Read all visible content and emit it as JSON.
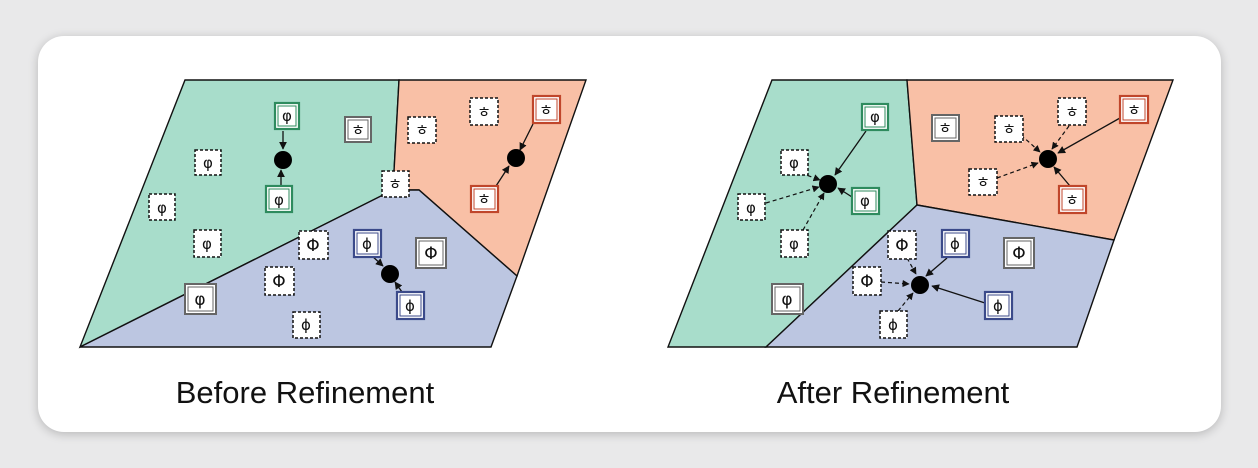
{
  "captions": {
    "before": "Before Refinement",
    "after": "After Refinement"
  },
  "glyphs": {
    "phi": "φ",
    "phi_upright": "ϕ",
    "phi_big": "Φ",
    "hangul": "ㅎ"
  },
  "colors": {
    "green_region": "#a8ddcb",
    "salmon_region": "#f9c0a6",
    "blue_region": "#bcc6e1",
    "green_border": "#2e8b5e",
    "salmon_border": "#c0462b",
    "blue_border": "#3b4a8a",
    "gray_border": "#666666"
  }
}
